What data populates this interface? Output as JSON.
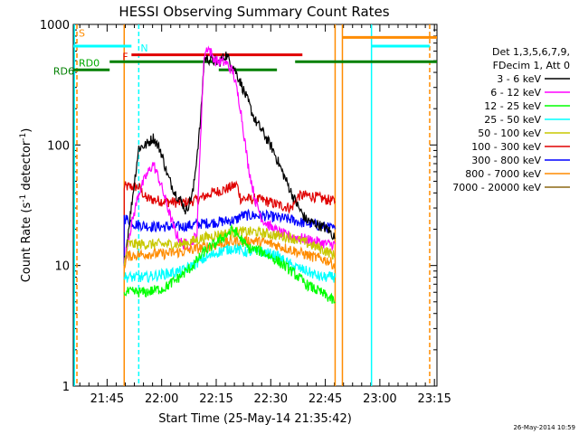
{
  "chart_data": {
    "type": "line",
    "title": "HESSI Observing Summary Count Rates",
    "xlabel": "Start Time (25-May-14 21:35:42)",
    "ylabel_main": "Count Rate (s",
    "ylabel_sup1": "-1",
    "ylabel_mid": " detector",
    "ylabel_sup2": "-1",
    "ylabel_end": ")",
    "y_scale": "log",
    "ylim": [
      1,
      1000
    ],
    "xlim_minutes": [
      0,
      100
    ],
    "x_ticks": [
      "21:45",
      "22:00",
      "22:15",
      "22:30",
      "22:45",
      "23:00",
      "23:15"
    ],
    "y_ticks": [
      "1",
      "10",
      "100",
      "1000"
    ],
    "footer_date": "26-May-2014 10:59",
    "legend": {
      "header1": "Det 1,3,5,6,7,9,",
      "header2": "FDecim 1, Att 0",
      "placement": "right"
    },
    "series": [
      {
        "name": "3 - 6 keV",
        "color": "#000000"
      },
      {
        "name": "6 - 12 keV",
        "color": "#ff00ff"
      },
      {
        "name": "12 - 25 keV",
        "color": "#00ff00"
      },
      {
        "name": "25 - 50 keV",
        "color": "#00ffff"
      },
      {
        "name": "50 - 100 keV",
        "color": "#c8c800"
      },
      {
        "name": "100 - 300 keV",
        "color": "#e00000"
      },
      {
        "name": "300 - 800 keV",
        "color": "#0000ff"
      },
      {
        "name": "800 - 7000 keV",
        "color": "#ff8c00"
      },
      {
        "name": "7000 - 20000 keV",
        "color": "#8b6914"
      }
    ],
    "curves": [
      {
        "series": 5,
        "points": [
          [
            14,
            10
          ],
          [
            14,
            45
          ],
          [
            18,
            45
          ],
          [
            20,
            36
          ],
          [
            25,
            34
          ],
          [
            30,
            33
          ],
          [
            34,
            35
          ],
          [
            38,
            40
          ],
          [
            42,
            43
          ],
          [
            45,
            47
          ],
          [
            46,
            36
          ],
          [
            52,
            35
          ],
          [
            56,
            32
          ],
          [
            60,
            30
          ],
          [
            62,
            38
          ],
          [
            65,
            38
          ],
          [
            70,
            35
          ],
          [
            72,
            34
          ]
        ]
      },
      {
        "series": 6,
        "points": [
          [
            14,
            10
          ],
          [
            14,
            25
          ],
          [
            17,
            22
          ],
          [
            22,
            21
          ],
          [
            30,
            21
          ],
          [
            34,
            22
          ],
          [
            40,
            23
          ],
          [
            45,
            24
          ],
          [
            46,
            26
          ],
          [
            52,
            26
          ],
          [
            56,
            25
          ],
          [
            60,
            24
          ],
          [
            62,
            23
          ],
          [
            66,
            22
          ],
          [
            72,
            20
          ]
        ]
      },
      {
        "series": 0,
        "points": [
          [
            14,
            10
          ],
          [
            15,
            18
          ],
          [
            18,
            95
          ],
          [
            20,
            100
          ],
          [
            22,
            115
          ],
          [
            24,
            90
          ],
          [
            26,
            55
          ],
          [
            28,
            40
          ],
          [
            30,
            33
          ],
          [
            31,
            28
          ],
          [
            33,
            42
          ],
          [
            35,
            160
          ],
          [
            36,
            520
          ],
          [
            38,
            510
          ],
          [
            40,
            480
          ],
          [
            42,
            560
          ],
          [
            44,
            450
          ],
          [
            46,
            330
          ],
          [
            48,
            230
          ],
          [
            50,
            160
          ],
          [
            52,
            130
          ],
          [
            55,
            90
          ],
          [
            58,
            55
          ],
          [
            60,
            40
          ],
          [
            62,
            30
          ],
          [
            64,
            24
          ],
          [
            67,
            22
          ],
          [
            70,
            20
          ],
          [
            72,
            17
          ]
        ]
      },
      {
        "series": 1,
        "points": [
          [
            14,
            10
          ],
          [
            15,
            16
          ],
          [
            18,
            40
          ],
          [
            20,
            55
          ],
          [
            22,
            70
          ],
          [
            24,
            48
          ],
          [
            26,
            30
          ],
          [
            28,
            19
          ],
          [
            30,
            15
          ],
          [
            32,
            15
          ],
          [
            34,
            18
          ],
          [
            35,
            120
          ],
          [
            36,
            560
          ],
          [
            37,
            650
          ],
          [
            39,
            500
          ],
          [
            42,
            480
          ],
          [
            44,
            400
          ],
          [
            46,
            200
          ],
          [
            48,
            70
          ],
          [
            50,
            35
          ],
          [
            52,
            24
          ],
          [
            55,
            20
          ],
          [
            58,
            18
          ],
          [
            62,
            17
          ],
          [
            66,
            16
          ],
          [
            70,
            15
          ],
          [
            72,
            15
          ]
        ]
      },
      {
        "series": 4,
        "points": [
          [
            14,
            10
          ],
          [
            15,
            15
          ],
          [
            20,
            15
          ],
          [
            25,
            15
          ],
          [
            30,
            15
          ],
          [
            33,
            16
          ],
          [
            36,
            17
          ],
          [
            40,
            18
          ],
          [
            45,
            19
          ],
          [
            50,
            19
          ],
          [
            55,
            18
          ],
          [
            60,
            17
          ],
          [
            65,
            15
          ],
          [
            70,
            13
          ],
          [
            72,
            12
          ]
        ]
      },
      {
        "series": 7,
        "points": [
          [
            14,
            10
          ],
          [
            15,
            12
          ],
          [
            20,
            12.5
          ],
          [
            25,
            12.5
          ],
          [
            30,
            13
          ],
          [
            35,
            14
          ],
          [
            40,
            15
          ],
          [
            45,
            16
          ],
          [
            50,
            16
          ],
          [
            55,
            15
          ],
          [
            60,
            13.5
          ],
          [
            65,
            12
          ],
          [
            70,
            11
          ],
          [
            72,
            10
          ]
        ]
      },
      {
        "series": 3,
        "points": [
          [
            14,
            8
          ],
          [
            15,
            8
          ],
          [
            20,
            8
          ],
          [
            25,
            8.5
          ],
          [
            30,
            9
          ],
          [
            35,
            11
          ],
          [
            40,
            13
          ],
          [
            44,
            14
          ],
          [
            47,
            13
          ],
          [
            52,
            13
          ],
          [
            56,
            12
          ],
          [
            60,
            10
          ],
          [
            64,
            9
          ],
          [
            68,
            8
          ],
          [
            72,
            8
          ]
        ]
      },
      {
        "series": 2,
        "points": [
          [
            14,
            6
          ],
          [
            16,
            6
          ],
          [
            20,
            6
          ],
          [
            25,
            6.5
          ],
          [
            28,
            7.5
          ],
          [
            33,
            10
          ],
          [
            36,
            13
          ],
          [
            40,
            16
          ],
          [
            44,
            20
          ],
          [
            48,
            14
          ],
          [
            52,
            13
          ],
          [
            56,
            11
          ],
          [
            60,
            9
          ],
          [
            64,
            7
          ],
          [
            68,
            6
          ],
          [
            72,
            5
          ]
        ]
      }
    ],
    "annotations": [
      {
        "label": "S",
        "color": "#ff8c00",
        "x": 1,
        "y": 850
      },
      {
        "label": "N",
        "color": "#00ffff",
        "x": 18,
        "y": 640
      },
      {
        "label": "F",
        "color": "#e00000",
        "x": 13,
        "y": 540
      },
      {
        "label": "RD0",
        "color": "#00aa00",
        "x": 1,
        "y": 480
      },
      {
        "label": "RD6",
        "color": "#008000",
        "x": -6,
        "y": 410
      }
    ],
    "segments": [
      {
        "color": "#00ffff",
        "x1": 0,
        "x2": 16,
        "y": 660
      },
      {
        "color": "#e00000",
        "x1": 16,
        "x2": 63,
        "y": 560
      },
      {
        "color": "#008000",
        "x1": 0,
        "x2": 10,
        "y": 420
      },
      {
        "color": "#008000",
        "x1": 10,
        "x2": 40,
        "y": 490
      },
      {
        "color": "#008000",
        "x1": 40,
        "x2": 56,
        "y": 420
      },
      {
        "color": "#008000",
        "x1": 61,
        "x2": 100,
        "y": 490
      },
      {
        "color": "#ff8c00",
        "x1": 74,
        "x2": 100,
        "y": 780
      },
      {
        "color": "#00ffff",
        "x1": 82,
        "x2": 98,
        "y": 660
      }
    ],
    "vlines": [
      {
        "color": "#00ffff",
        "x": 0.3
      },
      {
        "color": "#ff8c00",
        "x": 1,
        "dashed": true
      },
      {
        "color": "#ff8c00",
        "x": 14
      },
      {
        "color": "#00ffff",
        "x": 18,
        "dashed": true
      },
      {
        "color": "#ff8c00",
        "x": 72
      },
      {
        "color": "#ff8c00",
        "x": 74
      },
      {
        "color": "#00ffff",
        "x": 82
      },
      {
        "color": "#ff8c00",
        "x": 98,
        "dashed": true
      }
    ]
  }
}
